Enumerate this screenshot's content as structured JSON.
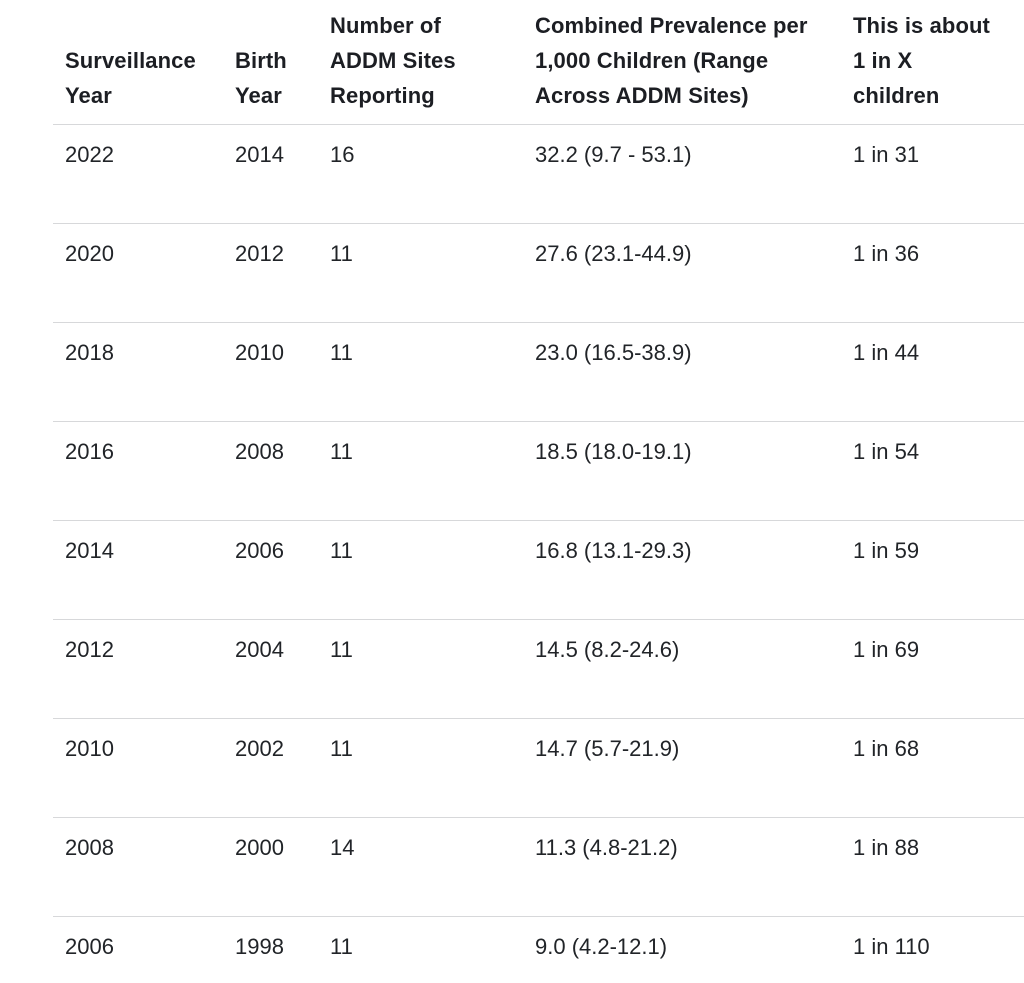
{
  "chart_data": {
    "type": "table",
    "title": "",
    "columns": [
      "Surveillance Year",
      "Birth Year",
      "Number of ADDM Sites Reporting",
      "Combined Prevalence per 1,000 Children (Range Across ADDM Sites)",
      "This is about 1 in X children"
    ],
    "rows": [
      [
        "2022",
        "2014",
        "16",
        "32.2 (9.7 - 53.1)",
        "1 in 31"
      ],
      [
        "2020",
        "2012",
        "11",
        "27.6 (23.1-44.9)",
        "1 in 36"
      ],
      [
        "2018",
        "2010",
        "11",
        "23.0 (16.5-38.9)",
        "1 in 44"
      ],
      [
        "2016",
        "2008",
        "11",
        "18.5 (18.0-19.1)",
        "1 in 54"
      ],
      [
        "2014",
        "2006",
        "11",
        "16.8 (13.1-29.3)",
        "1 in 59"
      ],
      [
        "2012",
        "2004",
        "11",
        "14.5 (8.2-24.6)",
        "1 in 69"
      ],
      [
        "2010",
        "2002",
        "11",
        "14.7 (5.7-21.9)",
        "1 in 68"
      ],
      [
        "2008",
        "2000",
        "14",
        "11.3 (4.8-21.2)",
        "1 in 88"
      ],
      [
        "2006",
        "1998",
        "11",
        "9.0 (4.2-12.1)",
        "1 in 110"
      ]
    ]
  },
  "table": {
    "headers": [
      "Surveillance\nYear",
      "Birth\nYear",
      "Number of\nADDM Sites\nReporting",
      "Combined Prevalence per\n1,000 Children (Range\nAcross ADDM Sites)",
      "This is about\n1 in X\nchildren"
    ],
    "rows": [
      [
        "2022",
        "2014",
        "16",
        "32.2 (9.7 - 53.1)",
        "1 in 31"
      ],
      [
        "2020",
        "2012",
        "11",
        "27.6 (23.1-44.9)",
        "1 in 36"
      ],
      [
        "2018",
        "2010",
        "11",
        "23.0 (16.5-38.9)",
        "1 in 44"
      ],
      [
        "2016",
        "2008",
        "11",
        "18.5 (18.0-19.1)",
        "1 in 54"
      ],
      [
        "2014",
        "2006",
        "11",
        "16.8 (13.1-29.3)",
        "1 in 59"
      ],
      [
        "2012",
        "2004",
        "11",
        "14.5 (8.2-24.6)",
        "1 in 69"
      ],
      [
        "2010",
        "2002",
        "11",
        "14.7 (5.7-21.9)",
        "1 in 68"
      ],
      [
        "2008",
        "2000",
        "14",
        "11.3 (4.8-21.2)",
        "1 in 88"
      ],
      [
        "2006",
        "1998",
        "11",
        "9.0 (4.2-12.1)",
        "1 in 110"
      ]
    ]
  },
  "colors": {
    "header_text": "#1c1e23",
    "body_text": "#212428",
    "divider": "#d7d8da",
    "background": "#ffffff"
  }
}
